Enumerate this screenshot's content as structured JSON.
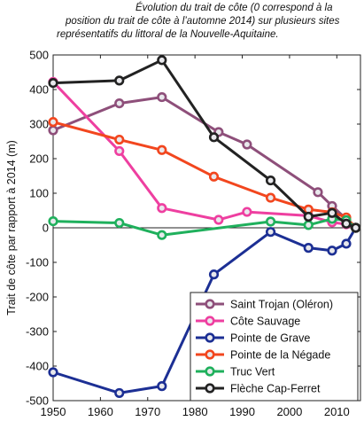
{
  "caption": {
    "line1": "Évolution du trait de côte (0 correspond à la",
    "line2": "position du trait de côte à l’automne 2014) sur plusieurs sites",
    "line3": "représentatifs du littoral de la Nouvelle-Aquitaine."
  },
  "chart_data": {
    "type": "line",
    "title": "Évolution du trait de côte (0 correspond à la position du trait de côte à l’automne 2014) sur plusieurs sites représentatifs du littoral de la Nouvelle-Aquitaine.",
    "xlabel": "",
    "ylabel": "Trait de côte par rapport à 2014 (m)",
    "xlim": [
      1950,
      2015
    ],
    "ylim": [
      -500,
      500
    ],
    "xticks": [
      1950,
      1960,
      1970,
      1980,
      1990,
      2000,
      2010
    ],
    "yticks": [
      500,
      400,
      300,
      200,
      100,
      0,
      -100,
      -200,
      -300,
      -400,
      -500
    ],
    "grid": false,
    "legend_position": "bottom-right",
    "series": [
      {
        "name": "Saint Trojan (Oléron)",
        "color": "#8e4f7a",
        "x": [
          1950,
          1964,
          1973,
          1985,
          1991,
          2006,
          2009,
          2014
        ],
        "y": [
          282,
          360,
          378,
          277,
          241,
          103,
          63,
          0
        ]
      },
      {
        "name": "Côte Sauvage",
        "color": "#ee3fa0",
        "x": [
          1950,
          1964,
          1973,
          1985,
          1991,
          2004,
          2009,
          2012,
          2014
        ],
        "y": [
          422,
          222,
          57,
          23,
          46,
          35,
          16,
          10,
          0
        ]
      },
      {
        "name": "Pointe de Grave",
        "color": "#1c2f94",
        "x": [
          1950,
          1964,
          1973,
          1984,
          1996,
          2004,
          2009,
          2012,
          2014
        ],
        "y": [
          -418,
          -478,
          -458,
          -135,
          -12,
          -58,
          -66,
          -46,
          0
        ]
      },
      {
        "name": "Pointe de la Négade",
        "color": "#f2461e",
        "x": [
          1950,
          1964,
          1973,
          1984,
          1996,
          2004,
          2009,
          2012,
          2014
        ],
        "y": [
          306,
          255,
          225,
          148,
          87,
          53,
          45,
          30,
          0
        ]
      },
      {
        "name": "Truc Vert",
        "color": "#1fb05c",
        "x": [
          1950,
          1964,
          1973,
          1996,
          2004,
          2009,
          2012,
          2014
        ],
        "y": [
          19,
          14,
          -21,
          18,
          8,
          26,
          22,
          0
        ]
      },
      {
        "name": "Flèche Cap-Ferret",
        "color": "#222222",
        "x": [
          1950,
          1964,
          1973,
          1984,
          1996,
          2004,
          2009,
          2012,
          2014
        ],
        "y": [
          419,
          426,
          485,
          262,
          137,
          32,
          43,
          12,
          0
        ]
      }
    ]
  }
}
